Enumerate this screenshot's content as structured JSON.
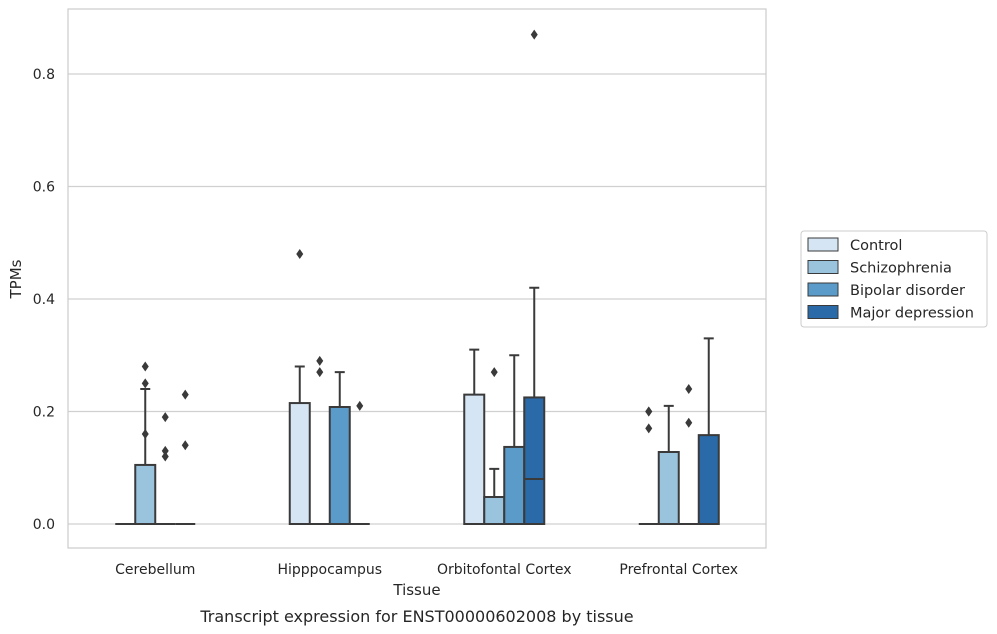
{
  "chart_data": {
    "type": "box",
    "xlabel": "Tissue",
    "ylabel": "TPMs",
    "caption": "Transcript expression for ENST00000602008 by tissue",
    "ylim": [
      -0.04,
      0.92
    ],
    "yticks": [
      0.0,
      0.2,
      0.4,
      0.6,
      0.8
    ],
    "ytick_labels": [
      "0.0",
      "0.2",
      "0.4",
      "0.6",
      "0.8"
    ],
    "grid": "horizontal",
    "legend_position": "right",
    "categories": [
      "Cerebellum",
      "Hipppocampus",
      "Orbitofontal Cortex",
      "Prefrontal Cortex"
    ],
    "series": [
      {
        "name": "Control",
        "color": "#d6e5f4",
        "boxes": [
          {
            "q1": 0,
            "median": 0,
            "q3": 0,
            "whislo": 0,
            "whishi": 0,
            "fliers": []
          },
          {
            "q1": 0,
            "median": 0,
            "q3": 0.215,
            "whislo": 0,
            "whishi": 0.28,
            "fliers": [
              0.48
            ]
          },
          {
            "q1": 0,
            "median": 0,
            "q3": 0.23,
            "whislo": 0,
            "whishi": 0.31,
            "fliers": []
          },
          {
            "q1": 0,
            "median": 0,
            "q3": 0,
            "whislo": 0,
            "whishi": 0,
            "fliers": [
              0.17,
              0.2,
              0.2
            ]
          }
        ]
      },
      {
        "name": "Schizophrenia",
        "color": "#9ac3de",
        "boxes": [
          {
            "q1": 0,
            "median": 0,
            "q3": 0.105,
            "whislo": 0,
            "whishi": 0.24,
            "fliers": [
              0.16,
              0.25,
              0.28
            ]
          },
          {
            "q1": 0,
            "median": 0,
            "q3": 0,
            "whislo": 0,
            "whishi": 0,
            "fliers": [
              0.27,
              0.29
            ]
          },
          {
            "q1": 0,
            "median": 0,
            "q3": 0.048,
            "whislo": 0,
            "whishi": 0.098,
            "fliers": [
              0.27
            ]
          },
          {
            "q1": 0,
            "median": 0,
            "q3": 0.128,
            "whislo": 0,
            "whishi": 0.21,
            "fliers": []
          }
        ]
      },
      {
        "name": "Bipolar disorder",
        "color": "#5a9bc9",
        "boxes": [
          {
            "q1": 0,
            "median": 0,
            "q3": 0,
            "whislo": 0,
            "whishi": 0,
            "fliers": [
              0.12,
              0.13,
              0.19
            ]
          },
          {
            "q1": 0,
            "median": 0,
            "q3": 0.208,
            "whislo": 0,
            "whishi": 0.27,
            "fliers": []
          },
          {
            "q1": 0,
            "median": 0,
            "q3": 0.137,
            "whislo": 0,
            "whishi": 0.3,
            "fliers": []
          },
          {
            "q1": 0,
            "median": 0,
            "q3": 0,
            "whislo": 0,
            "whishi": 0,
            "fliers": [
              0.18,
              0.24
            ]
          }
        ]
      },
      {
        "name": "Major depression",
        "color": "#2b6aa8",
        "boxes": [
          {
            "q1": 0,
            "median": 0,
            "q3": 0,
            "whislo": 0,
            "whishi": 0,
            "fliers": [
              0.14,
              0.23
            ]
          },
          {
            "q1": 0,
            "median": 0,
            "q3": 0,
            "whislo": 0,
            "whishi": 0,
            "fliers": [
              0.21
            ]
          },
          {
            "q1": 0,
            "median": 0.08,
            "q3": 0.225,
            "whislo": 0,
            "whishi": 0.42,
            "fliers": [
              0.87
            ]
          },
          {
            "q1": 0,
            "median": 0,
            "q3": 0.158,
            "whislo": 0,
            "whishi": 0.33,
            "fliers": []
          }
        ]
      }
    ]
  }
}
